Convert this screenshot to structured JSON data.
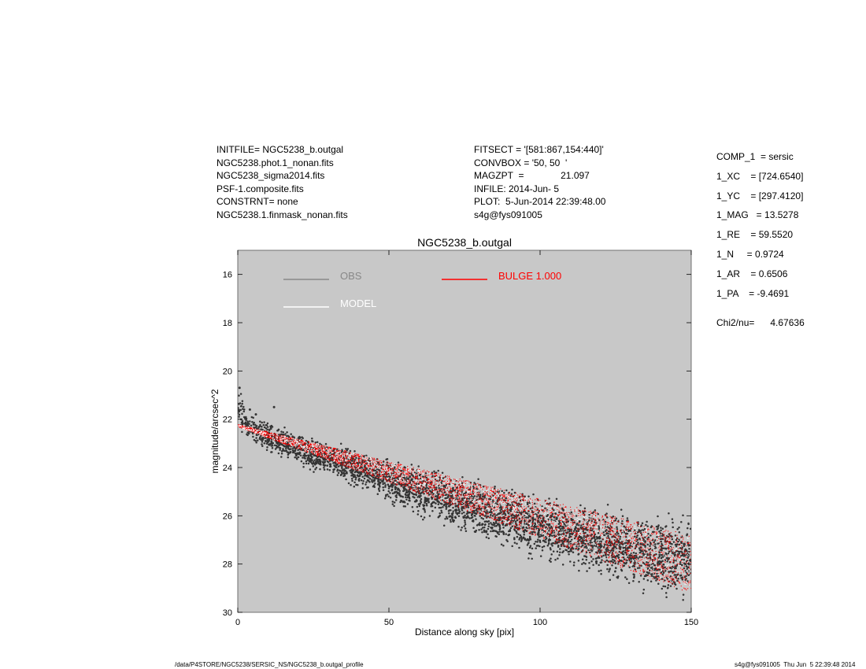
{
  "header": {
    "left": [
      "INITFILE= NGC5238_b.outgal",
      "NGC5238.phot.1_nonan.fits",
      "NGC5238_sigma2014.fits",
      "PSF-1.composite.fits",
      "CONSTRNT= none",
      "NGC5238.1.finmask_nonan.fits"
    ],
    "middle": [
      "FITSECT = '[581:867,154:440]'",
      "CONVBOX = '50, 50  '",
      "MAGZPT  =              21.097",
      "INFILE: 2014-Jun- 5",
      "PLOT:  5-Jun-2014 22:39:48.00",
      "s4g@fys091005"
    ]
  },
  "components": [
    "COMP_1  = sersic",
    "1_XC    = [724.6540]",
    "1_YC    = [297.4120]",
    "1_MAG   = 13.5278",
    "1_RE    = 59.5520",
    "1_N     = 0.9724",
    "1_AR    = 0.6506",
    "1_PA    = -9.4691"
  ],
  "chi2": "Chi2/nu=      4.67636",
  "footer": {
    "left": "/data/P4STORE/NGC5238/SERSIC_NS/NGC5238_b.outgal_profile",
    "right": "s4g@fys091005  Thu Jun  5 22:39:48 2014"
  },
  "colors": {
    "plot_bg": "#c8c8c8",
    "obs": "#333333",
    "obs_legend": "#888888",
    "model": "#ffffff",
    "bulge": "#ff0000"
  },
  "chart_data": {
    "type": "scatter",
    "title": "NGC5238_b.outgal",
    "xlabel": "Distance along sky [pix]",
    "ylabel": "magnitude/arcsec^2",
    "xlim": [
      0,
      150
    ],
    "ylim": [
      30,
      15
    ],
    "y_inverted": true,
    "grid": false,
    "xticks": [
      0,
      50,
      100,
      150
    ],
    "yticks": [
      16,
      18,
      20,
      22,
      24,
      26,
      28,
      30
    ],
    "legend_placement": "top-left",
    "legend": [
      {
        "label": "OBS",
        "color": "#888888"
      },
      {
        "label": "MODEL",
        "color": "#ffffff"
      },
      {
        "label": "BULGE  1.000",
        "color": "#ff0000"
      }
    ],
    "series": [
      {
        "name": "OBS",
        "kind": "dense-scatter",
        "color": "#333333",
        "x": [
          1,
          3,
          10,
          20,
          40,
          60,
          80,
          100,
          120,
          140,
          150
        ],
        "y_upper": [
          20.7,
          21.7,
          22.0,
          22.5,
          23.1,
          23.8,
          24.3,
          25.0,
          25.4,
          25.8,
          25.9
        ],
        "y_lower": [
          22.6,
          22.8,
          23.4,
          24.0,
          25.0,
          26.2,
          27.1,
          28.0,
          28.8,
          29.6,
          30.0
        ]
      },
      {
        "name": "BULGE  1.000",
        "kind": "band",
        "color": "#ff0000",
        "x": [
          0,
          150
        ],
        "y_upper": [
          22.2,
          26.8
        ],
        "y_lower": [
          22.3,
          29.2
        ]
      },
      {
        "name": "MODEL",
        "kind": "band",
        "color": "#ffffff",
        "x": [
          0,
          150
        ],
        "y_upper": [
          22.2,
          26.9
        ],
        "y_lower": [
          22.3,
          29.0
        ]
      }
    ]
  }
}
